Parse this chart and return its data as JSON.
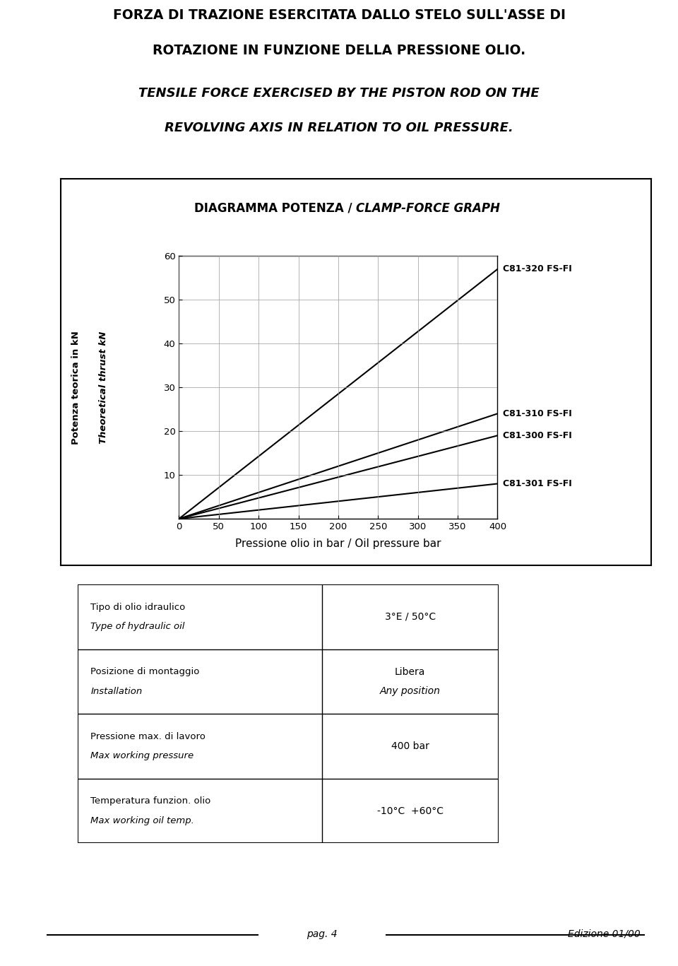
{
  "title_line1": "FORZA DI TRAZIONE ESERCITATA DALLO STELO SULL'ASSE DI",
  "title_line2": "ROTAZIONE IN FUNZIONE DELLA PRESSIONE OLIO.",
  "subtitle_line1": "TENSILE FORCE EXERCISED BY THE PISTON ROD ON THE",
  "subtitle_line2": "REVOLVING AXIS IN RELATION TO OIL PRESSURE.",
  "chart_title_bold": "DIAGRAMMA POTENZA / ",
  "chart_title_italic": "CLAMP-FORCE GRAPH",
  "ylabel_bold": "Potenza teorica in kN",
  "ylabel_italic": "Theoretical thrust kN",
  "xlabel_bold": "Pressione olio in bar / ",
  "xlabel_italic": "Oil pressure bar",
  "x_ticks": [
    0,
    50,
    100,
    150,
    200,
    250,
    300,
    350,
    400
  ],
  "y_ticks": [
    10,
    20,
    30,
    40,
    50,
    60
  ],
  "x_lim": [
    0,
    400
  ],
  "y_lim": [
    0,
    60
  ],
  "lines": [
    {
      "label": "C81-320 FS-FI",
      "x": [
        0,
        400
      ],
      "y": [
        0,
        57
      ]
    },
    {
      "label": "C81-310 FS-FI",
      "x": [
        0,
        400
      ],
      "y": [
        0,
        24
      ]
    },
    {
      "label": "C81-300 FS-FI",
      "x": [
        0,
        400
      ],
      "y": [
        0,
        19
      ]
    },
    {
      "label": "C81-301 FS-FI",
      "x": [
        0,
        400
      ],
      "y": [
        0,
        8
      ]
    }
  ],
  "table_rows": [
    {
      "label_bold": "Tipo di olio idraulico",
      "label_italic": "Type of hydraulic oil",
      "value": "3°E / 50°C"
    },
    {
      "label_bold": "Posizione di montaggio",
      "label_italic": "Installation",
      "value_bold": "Libera",
      "value_italic": "Any position"
    },
    {
      "label_bold": "Pressione max. di lavoro",
      "label_italic": "Max working pressure",
      "value": "400 bar"
    },
    {
      "label_bold": "Temperatura funzion. olio",
      "label_italic": "Max working oil temp.",
      "value": "-10°C  +60°C"
    }
  ],
  "footer_left": "pag. 4",
  "footer_right": "Edizione 01/00",
  "bg_color": "#ffffff",
  "text_color": "#000000",
  "line_color": "#000000",
  "table_col_split": 0.58
}
